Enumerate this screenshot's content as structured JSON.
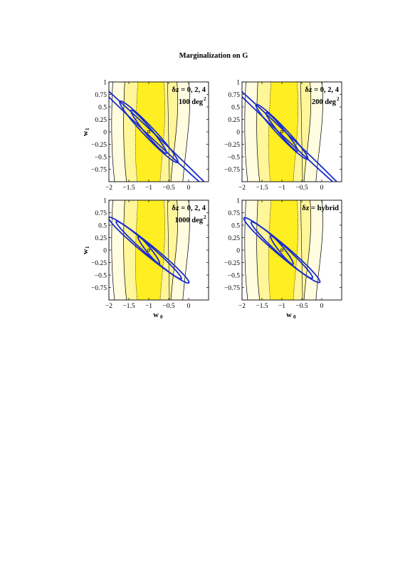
{
  "page_title": "Marginalization  on   G",
  "chart_data": [
    {
      "type": "contour",
      "annotation_line1": "δz = 0, 2, 4",
      "annotation_line2": "100 deg",
      "annotation_sup": "2",
      "xlabel": "",
      "ylabel": "w",
      "ylabel_sub": "1",
      "xlim": [
        -2,
        0.5
      ],
      "ylim": [
        -1,
        1
      ],
      "x_ticks": [
        -2,
        -1.5,
        -1,
        -0.5,
        0
      ],
      "x_tick_labels": [
        "−2",
        "−1.5",
        "−1",
        "−0.5",
        "0"
      ],
      "y_ticks": [
        1,
        0.75,
        0.5,
        0.25,
        0,
        -0.25,
        -0.5,
        -0.75
      ],
      "y_tick_labels": [
        "1",
        "0.75",
        "0.5",
        "0.25",
        "0",
        "−0.25",
        "−0.5",
        "−0.75"
      ],
      "fiducial": {
        "w0": -1,
        "w1": 0
      },
      "ellipses": [
        {
          "cx": -1,
          "cy": 0,
          "a": 0.62,
          "b": 0.075,
          "angle_deg": -44
        },
        {
          "cx": -1,
          "cy": 0,
          "a": 0.95,
          "b": 0.115,
          "angle_deg": -40
        },
        {
          "cx": -1,
          "cy": 0,
          "a": 2.2,
          "b": 0.055,
          "angle_deg": -37
        }
      ]
    },
    {
      "type": "contour",
      "annotation_line1": "δz = 0, 2, 4",
      "annotation_line2": "200 deg",
      "annotation_sup": "2",
      "xlabel": "",
      "ylabel": "",
      "ylabel_sub": "",
      "xlim": [
        -2,
        0.5
      ],
      "ylim": [
        -1,
        1
      ],
      "x_ticks": [
        -2,
        -1.5,
        -1,
        -0.5,
        0
      ],
      "x_tick_labels": [
        "−2",
        "−1.5",
        "−1",
        "−0.5",
        "0"
      ],
      "y_ticks": [
        1,
        0.75,
        0.5,
        0.25,
        0,
        -0.25,
        -0.5,
        -0.75
      ],
      "y_tick_labels": [
        "1",
        "0.75",
        "0.5",
        "0.25",
        "0",
        "−0.25",
        "−0.5",
        "−0.75"
      ],
      "fiducial": {
        "w0": -1,
        "w1": 0
      },
      "ellipses": [
        {
          "cx": -1,
          "cy": 0,
          "a": 0.55,
          "b": 0.065,
          "angle_deg": -44
        },
        {
          "cx": -1,
          "cy": 0,
          "a": 0.85,
          "b": 0.1,
          "angle_deg": -40
        },
        {
          "cx": -1,
          "cy": 0,
          "a": 2.1,
          "b": 0.05,
          "angle_deg": -37
        }
      ]
    },
    {
      "type": "contour",
      "annotation_line1": "δz = 0, 2, 4",
      "annotation_line2": "1000 deg",
      "annotation_sup": "2",
      "xlabel": "w",
      "xlabel_sub": "0",
      "ylabel": "w",
      "ylabel_sub": "1",
      "xlim": [
        -2,
        0.5
      ],
      "ylim": [
        -1,
        1
      ],
      "x_ticks": [
        -2,
        -1.5,
        -1,
        -0.5,
        0
      ],
      "x_tick_labels": [
        "−2",
        "−1.5",
        "−1",
        "−0.5",
        "0"
      ],
      "y_ticks": [
        1,
        0.75,
        0.5,
        0.25,
        0,
        -0.25,
        -0.5,
        -0.75
      ],
      "y_tick_labels": [
        "1",
        "0.75",
        "0.5",
        "0.25",
        "0",
        "−0.25",
        "−0.5",
        "−0.75"
      ],
      "fiducial": {
        "w0": -1,
        "w1": 0
      },
      "ellipses": [
        {
          "cx": -1,
          "cy": 0,
          "a": 0.38,
          "b": 0.055,
          "angle_deg": -45
        },
        {
          "cx": -1,
          "cy": 0,
          "a": 1.0,
          "b": 0.09,
          "angle_deg": -35
        },
        {
          "cx": -1,
          "cy": 0,
          "a": 1.2,
          "b": 0.115,
          "angle_deg": -33
        }
      ]
    },
    {
      "type": "contour",
      "annotation_line1": "δz = hybrid",
      "annotation_line2": "",
      "annotation_sup": "",
      "xlabel": "w",
      "xlabel_sub": "0",
      "ylabel": "",
      "ylabel_sub": "",
      "xlim": [
        -2,
        0.5
      ],
      "ylim": [
        -1,
        1
      ],
      "x_ticks": [
        -2,
        -1.5,
        -1,
        -0.5,
        0
      ],
      "x_tick_labels": [
        "−2",
        "−1.5",
        "−1",
        "−0.5",
        "0"
      ],
      "y_ticks": [
        1,
        0.75,
        0.5,
        0.25,
        0,
        -0.25,
        -0.5,
        -0.75
      ],
      "y_tick_labels": [
        "1",
        "0.75",
        "0.5",
        "0.25",
        "0",
        "−0.25",
        "−0.5",
        "−0.75"
      ],
      "fiducial": {
        "w0": -1,
        "w1": 0
      },
      "ellipses": [
        {
          "cx": -1,
          "cy": 0,
          "a": 0.4,
          "b": 0.06,
          "angle_deg": -45
        },
        {
          "cx": -1,
          "cy": 0,
          "a": 0.95,
          "b": 0.1,
          "angle_deg": -36
        },
        {
          "cx": -1,
          "cy": 0,
          "a": 1.15,
          "b": 0.12,
          "angle_deg": -34
        }
      ]
    }
  ],
  "colors": {
    "band_outer": "#fffce0",
    "band_mid": "#fff599",
    "band_inner": "#ffee22",
    "ellipse": "#1a2ccc",
    "frame": "#000000"
  }
}
